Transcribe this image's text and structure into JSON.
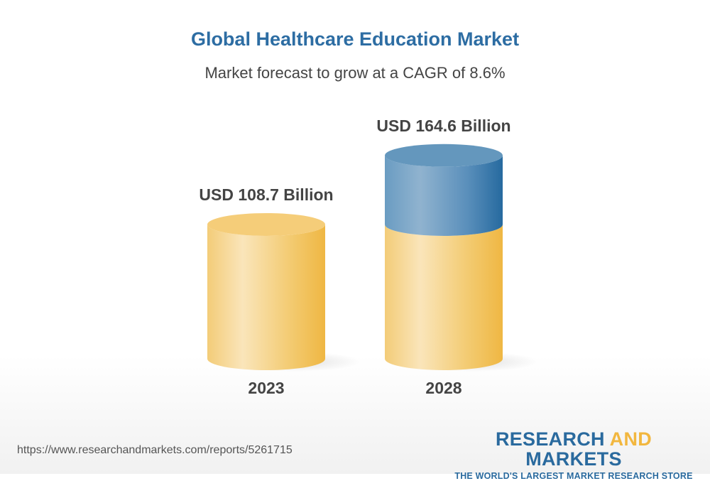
{
  "title": "Global Healthcare Education Market",
  "subtitle": "Market forecast to grow at a CAGR of 8.6%",
  "chart_data": {
    "type": "bar",
    "style": "3d-cylinder",
    "categories": [
      "2023",
      "2028"
    ],
    "values": [
      108.7,
      164.6
    ],
    "data_labels": [
      "USD 108.7 Billion",
      "USD 164.6 Billion"
    ],
    "unit": "USD Billion",
    "cagr": "8.6%",
    "colors": {
      "base": "#f2c35a",
      "growth": "#2a6a9e"
    }
  },
  "footer": {
    "url": "https://www.researchandmarkets.com/reports/5261715",
    "logo_part1": "RESEARCH ",
    "logo_part2": "AND",
    "logo_part3": " MARKETS",
    "tagline": "THE WORLD'S LARGEST MARKET RESEARCH STORE"
  }
}
